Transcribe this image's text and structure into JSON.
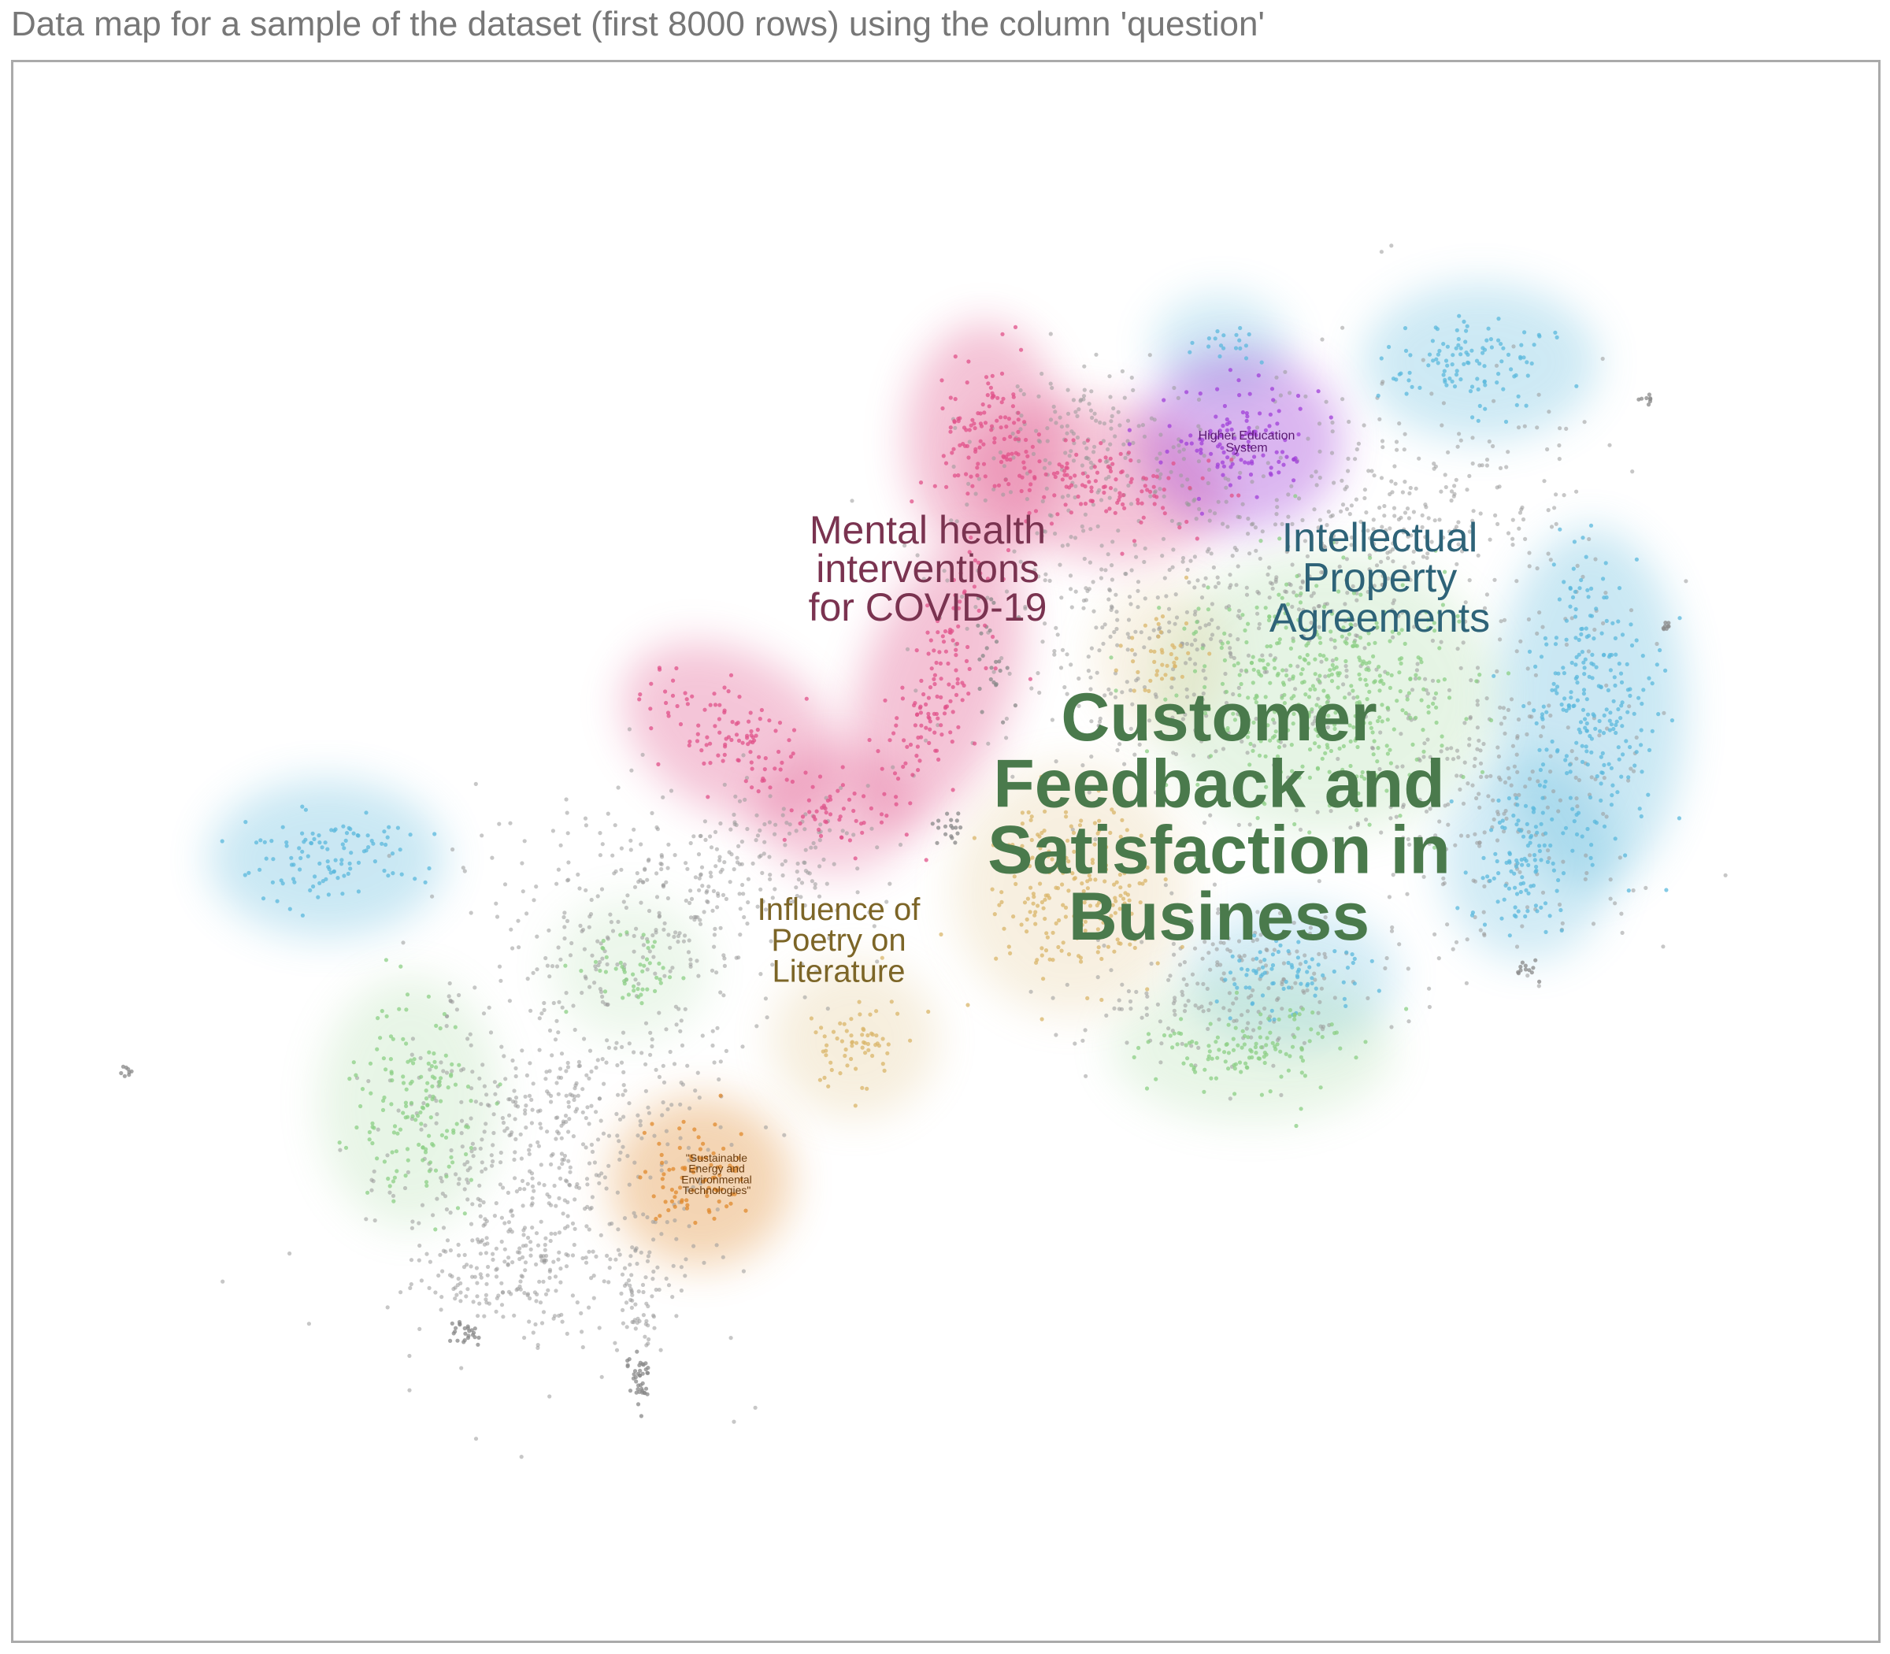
{
  "page": {
    "title": "Data map for a sample of the dataset (first 8000 rows) using the column 'question'"
  },
  "chart_data": {
    "type": "scatter",
    "title": "Data map for a sample of the dataset (first 8000 rows) using the column 'question'",
    "xlabel": "",
    "ylabel": "",
    "grid": false,
    "legend": "none",
    "clusters": [
      {
        "label": "Customer Feedback and Satisfaction in Business",
        "color": "#4a7a4c",
        "point_color": "#8ccf86"
      },
      {
        "label": "Mental health interventions for COVID-19",
        "color": "#7a3350",
        "point_color": "#e0528a"
      },
      {
        "label": "Intellectual Property Agreements",
        "color": "#2e6378",
        "point_color": "#5bb8dc"
      },
      {
        "label": "Influence of Poetry on Literature",
        "color": "#7c6527",
        "point_color": "#d9b56a"
      },
      {
        "label": "Higher Education System",
        "color": "#5a1a72",
        "point_color": "#a040d8"
      },
      {
        "label": "\"Sustainable Energy and Environmental Technologies\"",
        "color": "#6a3d10",
        "point_color": "#e08a2e"
      }
    ],
    "unclustered_point_color": "#999999"
  }
}
